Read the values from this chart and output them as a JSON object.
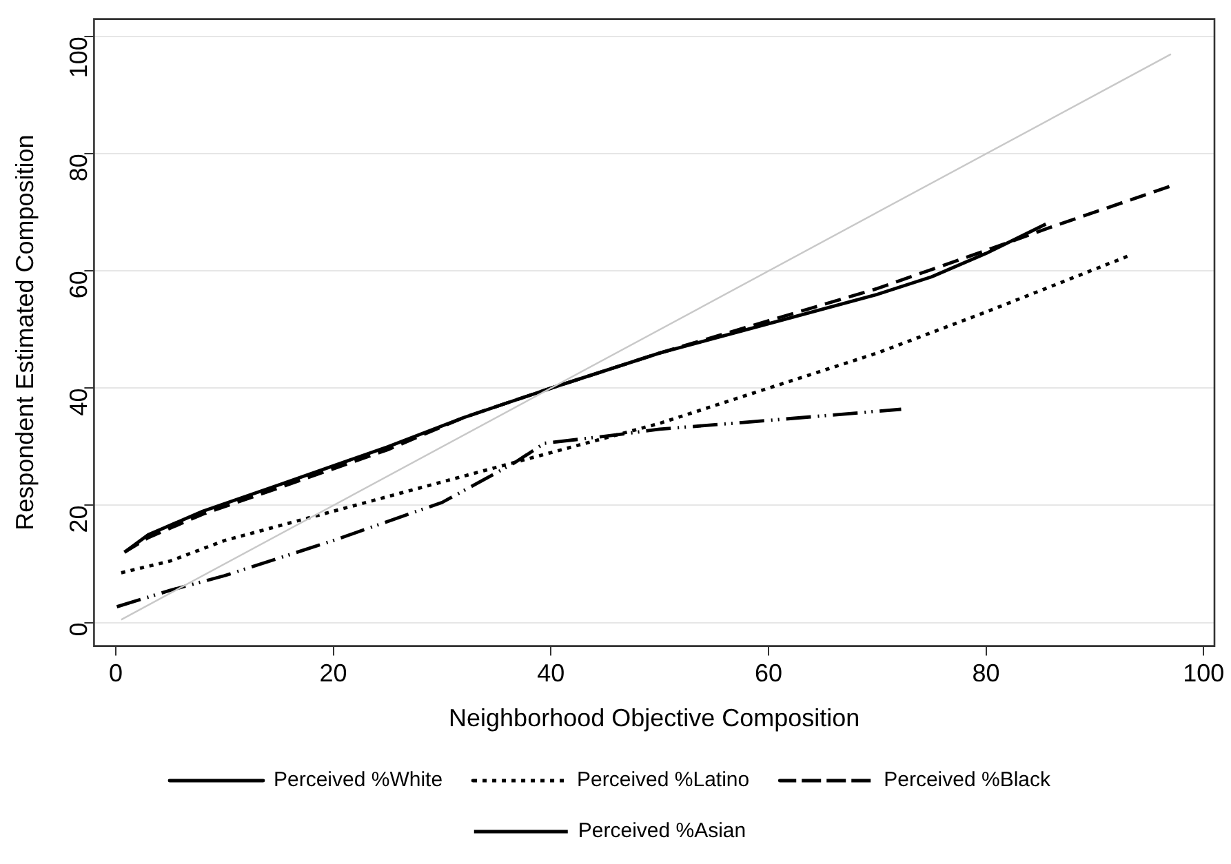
{
  "chart_data": {
    "type": "line",
    "xlabel": "Neighborhood Objective Composition",
    "ylabel": "Respondent Estimated Composition",
    "xlim": [
      -2,
      101
    ],
    "ylim": [
      -4,
      103
    ],
    "xticks": [
      0,
      20,
      40,
      60,
      80,
      100
    ],
    "yticks": [
      0,
      20,
      40,
      60,
      80,
      100
    ],
    "grid": "y",
    "legend": "bottom",
    "marker": "none",
    "series": [
      {
        "color": "#c8c8c8",
        "line_style": "solid",
        "x": [
          0.5,
          97
        ],
        "values": [
          0.5,
          97
        ]
      },
      {
        "name": "Perceived %White",
        "color": "#000000",
        "line_style": "solid",
        "x": [
          0.8,
          3,
          8,
          15,
          25,
          32,
          40,
          50,
          60,
          70,
          75,
          80,
          85.5
        ],
        "values": [
          12,
          15,
          19,
          23.5,
          30,
          35,
          40,
          46,
          51,
          56,
          59,
          63,
          68
        ]
      },
      {
        "name": "Perceived %Latino",
        "color": "#000000",
        "line_style": "dotted",
        "x": [
          0.5,
          5,
          10,
          20,
          30,
          40,
          50,
          60,
          70,
          80,
          93
        ],
        "values": [
          8.5,
          10.5,
          14,
          19,
          24,
          29,
          34,
          40,
          46,
          53,
          62.5
        ]
      },
      {
        "name": "Perceived %Black",
        "color": "#000000",
        "line_style": "dashed",
        "x": [
          0.8,
          3,
          8,
          15,
          25,
          32,
          40,
          50,
          60,
          70,
          80,
          86,
          97
        ],
        "values": [
          12,
          14.5,
          18.5,
          23,
          29.5,
          35,
          40,
          46,
          51.5,
          57,
          63.5,
          67.5,
          74.5
        ]
      },
      {
        "name": "Perceived %Asian",
        "color": "#000000",
        "line_style": "dashdot",
        "x": [
          0.1,
          5,
          10,
          20,
          30,
          36.6,
          39.4,
          45,
          50,
          60,
          72.2
        ],
        "values": [
          2.7,
          5.5,
          8,
          14,
          20.5,
          27.2,
          30.6,
          31.8,
          33,
          34.5,
          36.4
        ]
      }
    ]
  }
}
